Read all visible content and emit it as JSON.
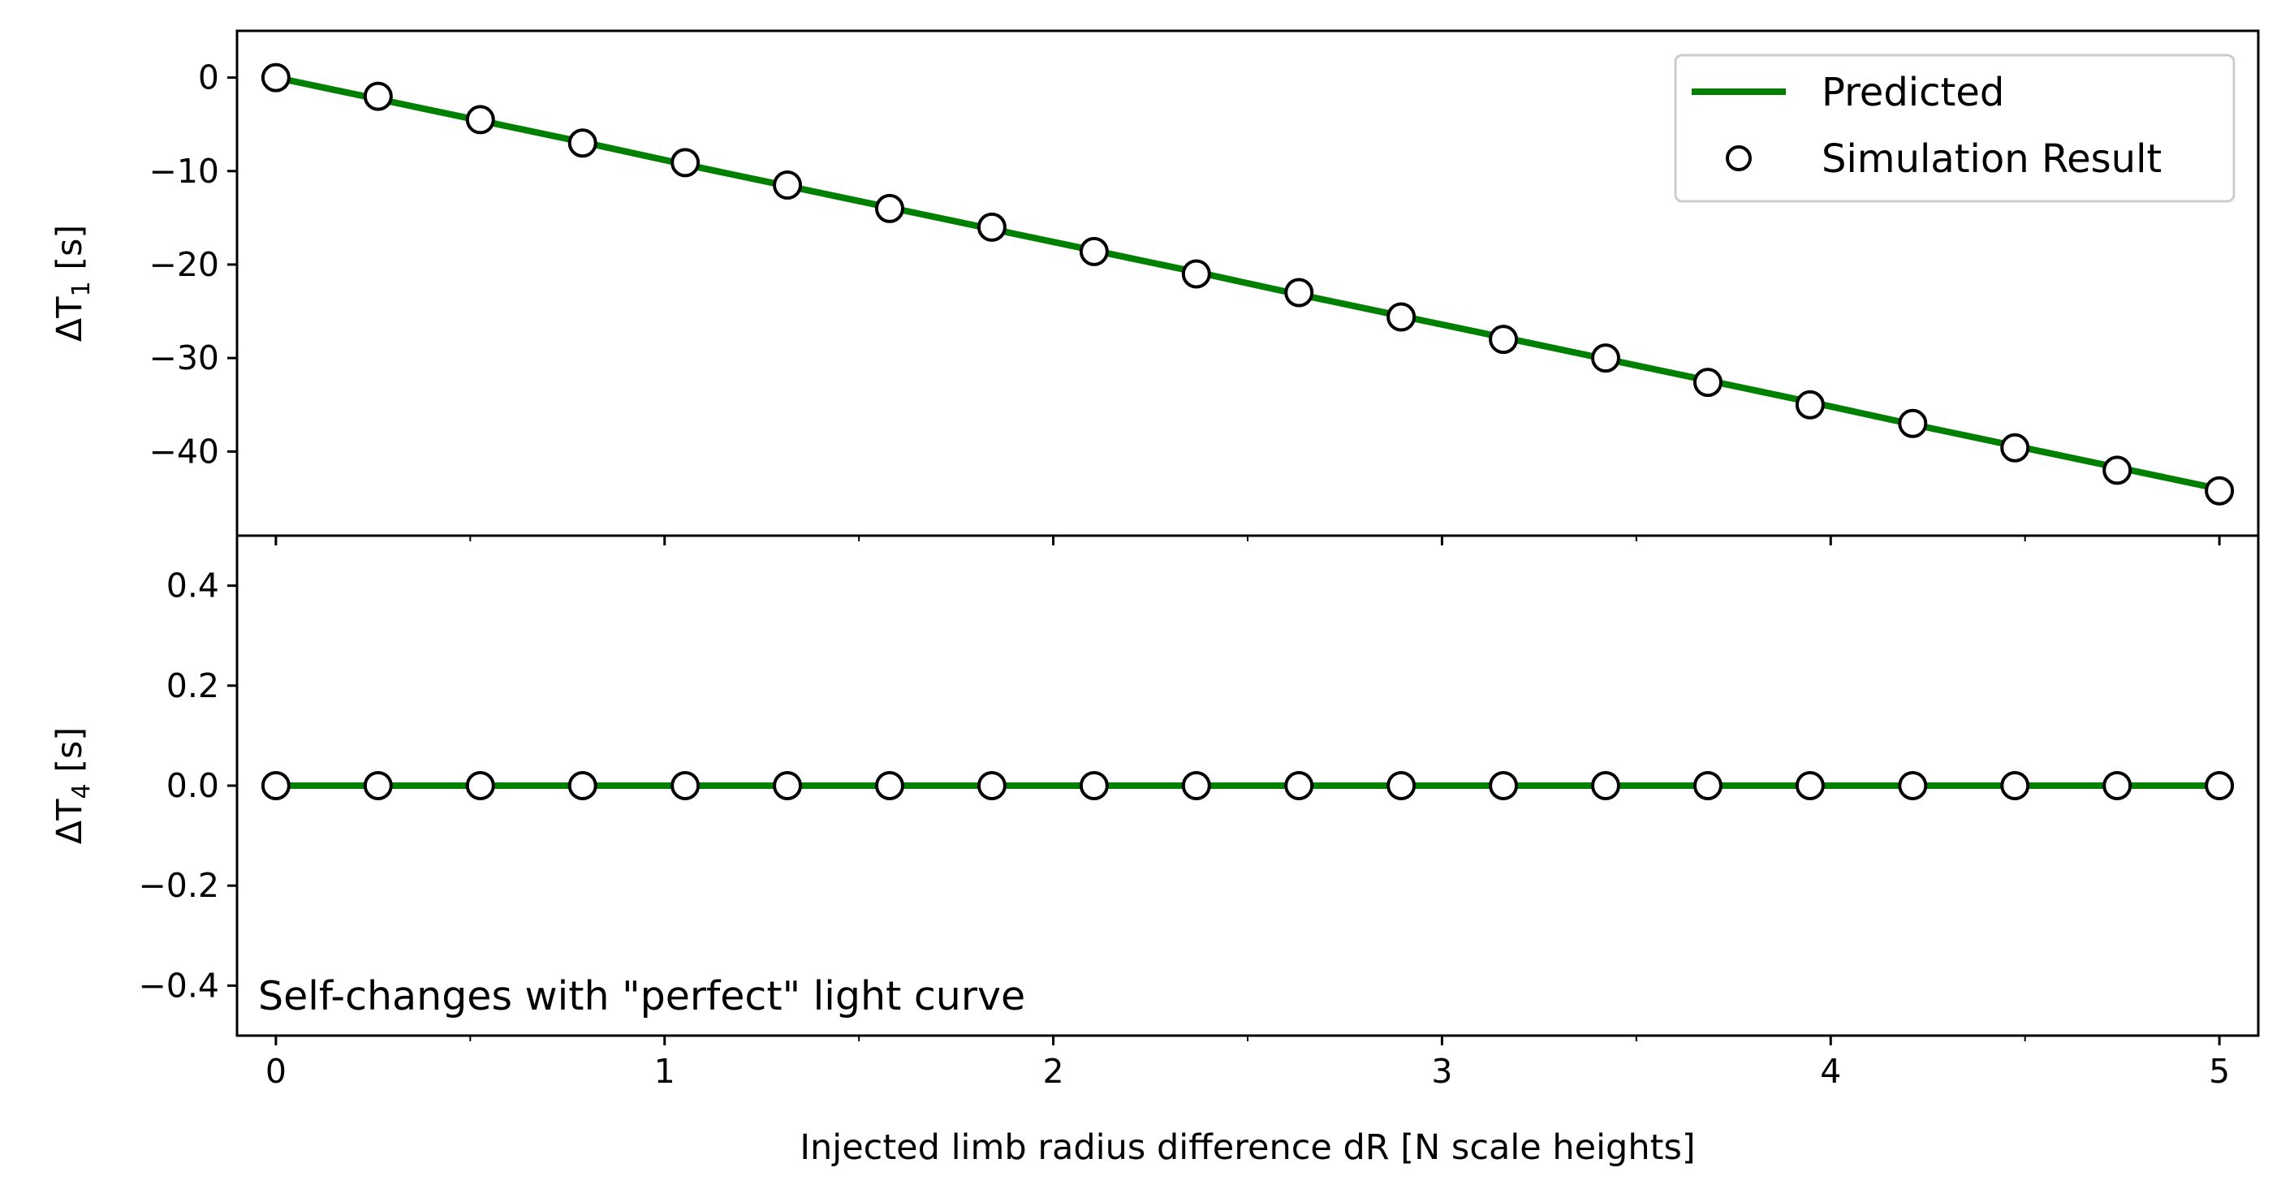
{
  "chart_data": [
    {
      "type": "line",
      "panel": "top",
      "x": [
        0,
        0.263,
        0.526,
        0.789,
        1.053,
        1.316,
        1.579,
        1.842,
        2.105,
        2.368,
        2.632,
        2.895,
        3.158,
        3.421,
        3.684,
        3.947,
        4.211,
        4.474,
        4.737,
        5.0
      ],
      "series": [
        {
          "name": "Predicted",
          "style": "line",
          "color": "#008000",
          "values": [
            0,
            -2.3,
            -4.6,
            -6.9,
            -9.3,
            -11.6,
            -13.9,
            -16.2,
            -18.5,
            -20.8,
            -23.2,
            -25.5,
            -27.8,
            -30.1,
            -32.4,
            -34.7,
            -37.1,
            -39.4,
            -41.7,
            -44.0
          ]
        },
        {
          "name": "Simulation Result",
          "style": "markers",
          "color": "#000000",
          "values": [
            0,
            -2.0,
            -4.5,
            -7.0,
            -9.1,
            -11.5,
            -14.0,
            -16.0,
            -18.6,
            -21.0,
            -23.0,
            -25.6,
            -28.0,
            -30.0,
            -32.6,
            -35.0,
            -37.0,
            -39.6,
            -42.0,
            -44.2
          ]
        }
      ],
      "xlim": [
        -0.1,
        5.1
      ],
      "ylim": [
        -49,
        5
      ],
      "yticks": [
        0,
        -10,
        -20,
        -30,
        -40
      ],
      "ytick_labels": [
        "0",
        "−10",
        "−20",
        "−30",
        "−40"
      ],
      "ylabel_main": "ΔT",
      "ylabel_sub": "1",
      "ylabel_unit": " [s]",
      "legend": "top-right"
    },
    {
      "type": "line",
      "panel": "bottom",
      "x": [
        0,
        0.263,
        0.526,
        0.789,
        1.053,
        1.316,
        1.579,
        1.842,
        2.105,
        2.368,
        2.632,
        2.895,
        3.158,
        3.421,
        3.684,
        3.947,
        4.211,
        4.474,
        4.737,
        5.0
      ],
      "series": [
        {
          "name": "Predicted",
          "style": "line",
          "color": "#008000",
          "values": [
            0,
            0,
            0,
            0,
            0,
            0,
            0,
            0,
            0,
            0,
            0,
            0,
            0,
            0,
            0,
            0,
            0,
            0,
            0,
            0
          ]
        },
        {
          "name": "Simulation Result",
          "style": "markers",
          "color": "#000000",
          "values": [
            0,
            0,
            0,
            0,
            0,
            0,
            0,
            0,
            0,
            0,
            0,
            0,
            0,
            0,
            0,
            0,
            0,
            0,
            0,
            0
          ]
        }
      ],
      "xlim": [
        -0.1,
        5.1
      ],
      "ylim": [
        -0.5,
        0.5
      ],
      "yticks": [
        0.4,
        0.2,
        0.0,
        -0.2,
        -0.4
      ],
      "ytick_labels": [
        "0.4",
        "0.2",
        "0.0",
        "−0.2",
        "−0.4"
      ],
      "xticks": [
        0,
        1,
        2,
        3,
        4,
        5
      ],
      "xtick_labels": [
        "0",
        "1",
        "2",
        "3",
        "4",
        "5"
      ],
      "xlabel": "Injected limb radius difference dR [N scale heights]",
      "ylabel_main": "ΔT",
      "ylabel_sub": "4",
      "ylabel_unit": " [s]",
      "annotation": "Self-changes with \"perfect\" light curve"
    }
  ]
}
